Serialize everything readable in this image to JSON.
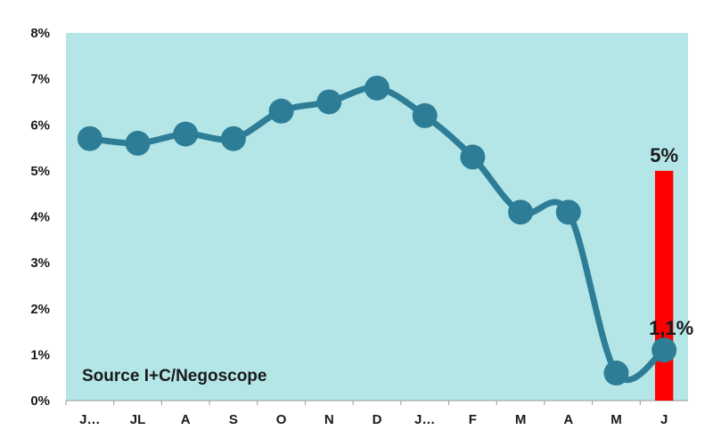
{
  "chart_data": {
    "type": "line",
    "categories": [
      "J…",
      "JL",
      "A",
      "S",
      "O",
      "N",
      "D",
      "J…",
      "F",
      "M",
      "A",
      "M",
      "J"
    ],
    "series": [
      {
        "type": "line",
        "values": [
          5.7,
          5.6,
          5.8,
          5.7,
          6.3,
          6.5,
          6.8,
          6.2,
          5.3,
          4.1,
          4.1,
          0.6,
          1.1
        ],
        "color": "#2e7d96",
        "end_label": "1,1%"
      },
      {
        "type": "bar",
        "category": "J",
        "value": 5,
        "color": "#ff0000",
        "label": "5%"
      }
    ],
    "yticks": [
      "0%",
      "1%",
      "2%",
      "3%",
      "4%",
      "5%",
      "6%",
      "7%",
      "8%"
    ],
    "ylim": [
      0,
      8
    ],
    "annotation": "Source I+C/Negoscope",
    "plot_background": "#b4e6e8",
    "grid": false
  }
}
